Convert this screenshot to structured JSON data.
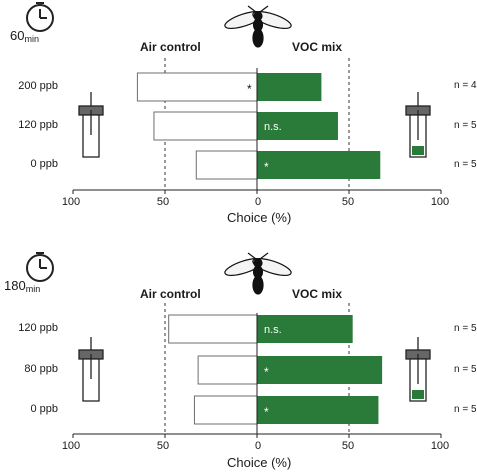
{
  "colors": {
    "voc_bar": "#2a7a3a",
    "outline": "#6e6e6e",
    "dashed": "#333333"
  },
  "icons": [
    "clock-icon",
    "wasp-icon",
    "vial-icon"
  ],
  "panels": [
    {
      "time_value": "60",
      "time_unit": "min",
      "left_label": "Air control",
      "right_label": "VOC mix",
      "xlabel": "Choice (%)",
      "n_labels": [
        "n = 4",
        "n = 5",
        "n = 5"
      ]
    },
    {
      "time_value": "180",
      "time_unit": "min",
      "left_label": "Air control",
      "right_label": "VOC mix",
      "xlabel": "Choice (%)",
      "n_labels": [
        "n = 5",
        "n = 5",
        "n = 5"
      ]
    }
  ],
  "chart_data": [
    {
      "type": "bar",
      "orientation": "horizontal-diverging",
      "categories": [
        "200 ppb",
        "120 ppb",
        "0 ppb"
      ],
      "series": [
        {
          "name": "Air control",
          "values": [
            65,
            56,
            33
          ]
        },
        {
          "name": "VOC mix",
          "values": [
            35,
            44,
            67
          ]
        }
      ],
      "annotations": [
        "*",
        "n.s.",
        "*"
      ],
      "xticks": [
        "100",
        "50",
        "0",
        "50",
        "100"
      ],
      "xlim": [
        -100,
        100
      ],
      "reference_lines": [
        -50,
        50
      ],
      "xlabel": "Choice (%)"
    },
    {
      "type": "bar",
      "orientation": "horizontal-diverging",
      "categories": [
        "120 ppb",
        "80 ppb",
        "0 ppb"
      ],
      "series": [
        {
          "name": "Air control",
          "values": [
            48,
            32,
            34
          ]
        },
        {
          "name": "VOC mix",
          "values": [
            52,
            68,
            66
          ]
        }
      ],
      "annotations": [
        "n.s.",
        "*",
        "*"
      ],
      "xticks": [
        "100",
        "50",
        "0",
        "50",
        "100"
      ],
      "xlim": [
        -100,
        100
      ],
      "reference_lines": [
        -50,
        50
      ],
      "xlabel": "Choice (%)"
    }
  ]
}
